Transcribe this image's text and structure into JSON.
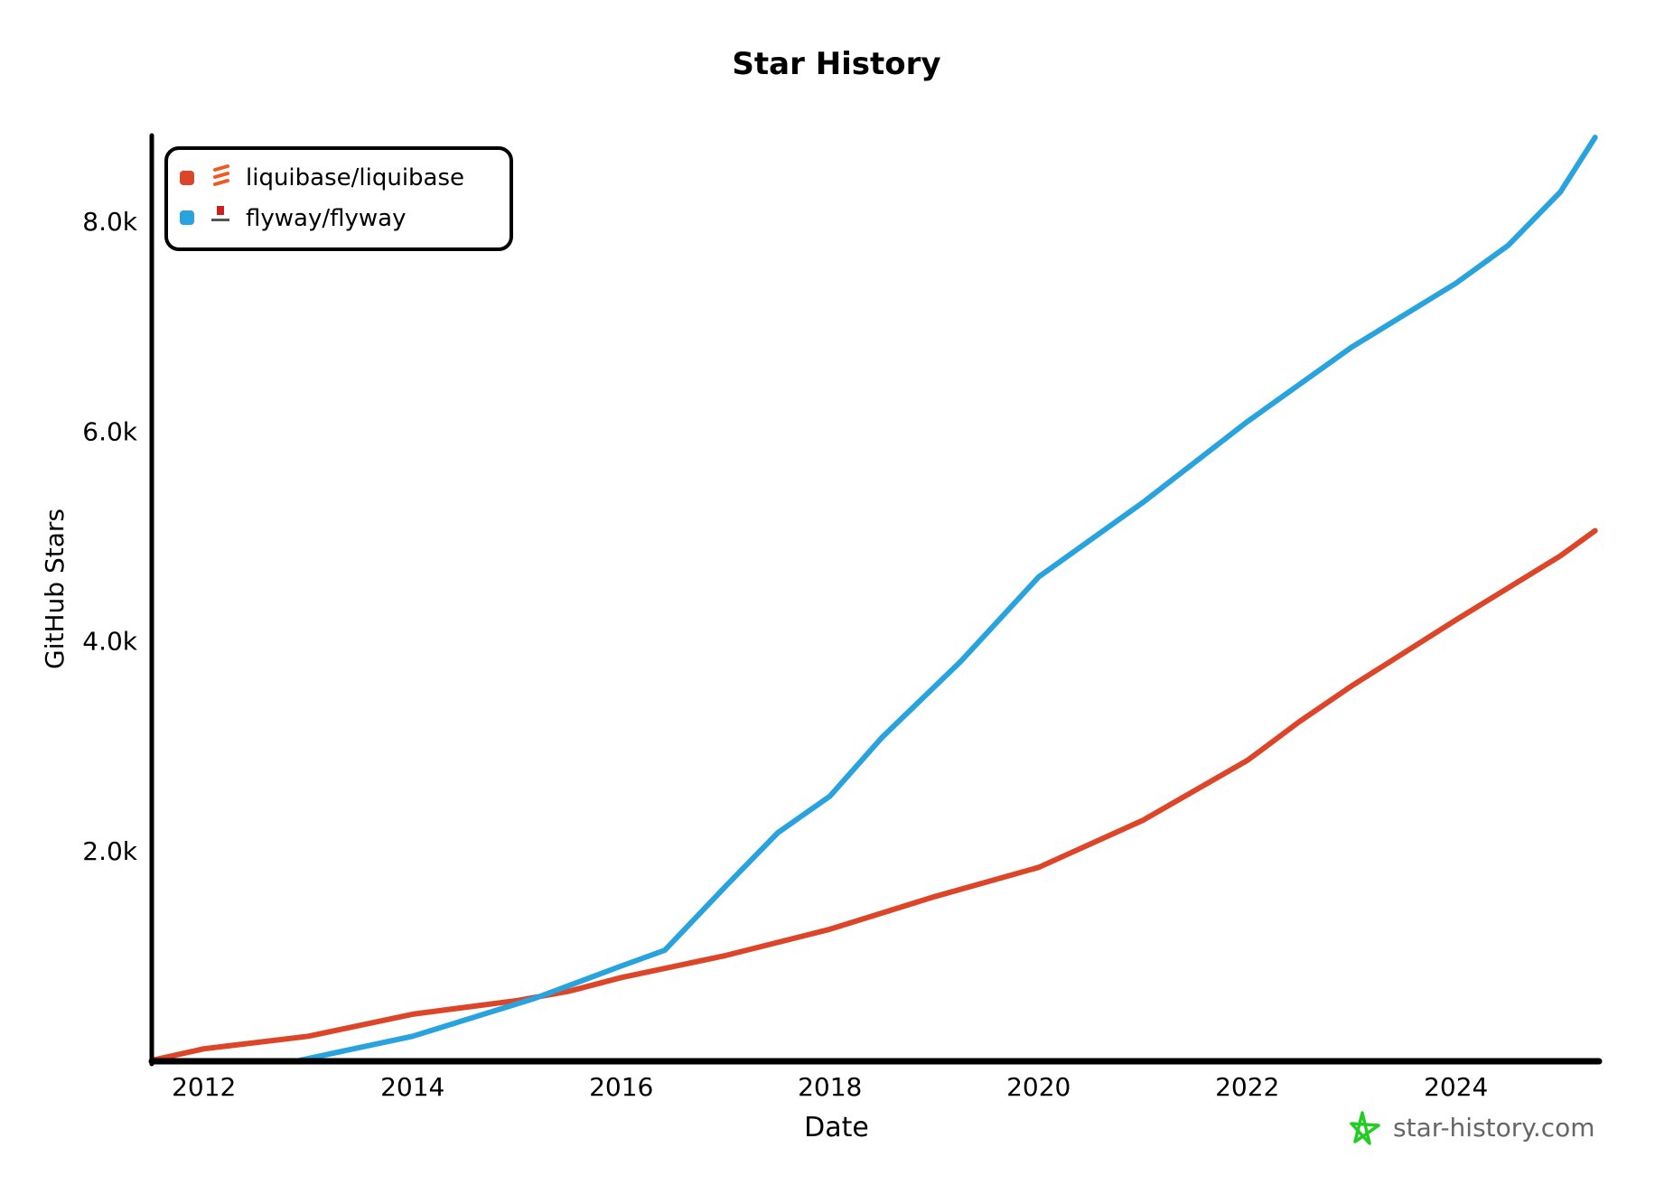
{
  "chart_data": {
    "type": "line",
    "title": "Star History",
    "xlabel": "Date",
    "ylabel": "GitHub Stars",
    "xlim": [
      "2011-07",
      "2025-05"
    ],
    "ylim": [
      0,
      8800
    ],
    "x_ticks": [
      "2012",
      "2014",
      "2016",
      "2018",
      "2020",
      "2022",
      "2024"
    ],
    "y_ticks": [
      {
        "value": 2000,
        "label": "2.0k"
      },
      {
        "value": 4000,
        "label": "4.0k"
      },
      {
        "value": 6000,
        "label": "6.0k"
      },
      {
        "value": 8000,
        "label": "8.0k"
      }
    ],
    "grid": false,
    "legend": "top-left",
    "watermark": "star-history.com",
    "series": [
      {
        "name": "liquibase/liquibase",
        "color": "#dd4528",
        "icon": "liquibase-logo",
        "points": [
          [
            "2011-07",
            0
          ],
          [
            "2012-01",
            110
          ],
          [
            "2013-01",
            230
          ],
          [
            "2014-01",
            440
          ],
          [
            "2015-01",
            570
          ],
          [
            "2015-07",
            660
          ],
          [
            "2016-01",
            790
          ],
          [
            "2017-01",
            1000
          ],
          [
            "2018-01",
            1250
          ],
          [
            "2019-01",
            1560
          ],
          [
            "2020-01",
            1840
          ],
          [
            "2021-01",
            2290
          ],
          [
            "2022-01",
            2860
          ],
          [
            "2022-07",
            3230
          ],
          [
            "2023-01",
            3570
          ],
          [
            "2024-01",
            4200
          ],
          [
            "2025-01",
            4810
          ],
          [
            "2025-05",
            5050
          ]
        ]
      },
      {
        "name": "flyway/flyway",
        "color": "#28a3dd",
        "icon": "flyway-logo",
        "points": [
          [
            "2012-12",
            0
          ],
          [
            "2014-01",
            230
          ],
          [
            "2015-03",
            590
          ],
          [
            "2016-01",
            900
          ],
          [
            "2016-06",
            1050
          ],
          [
            "2017-01",
            1660
          ],
          [
            "2017-07",
            2170
          ],
          [
            "2018-01",
            2520
          ],
          [
            "2018-07",
            3080
          ],
          [
            "2019-04",
            3800
          ],
          [
            "2020-01",
            4610
          ],
          [
            "2021-01",
            5320
          ],
          [
            "2022-01",
            6090
          ],
          [
            "2023-01",
            6800
          ],
          [
            "2024-01",
            7410
          ],
          [
            "2024-07",
            7770
          ],
          [
            "2025-01",
            8280
          ],
          [
            "2025-05",
            8800
          ]
        ]
      }
    ]
  }
}
